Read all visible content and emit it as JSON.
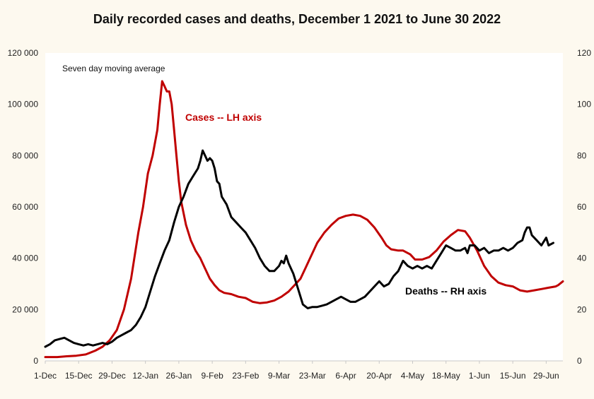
{
  "chart_data": {
    "type": "line",
    "title": "Daily recorded cases and deaths,  December 1 2021 to June 30 2022",
    "x_labels": [
      "1-Dec",
      "15-Dec",
      "29-Dec",
      "12-Jan",
      "26-Jan",
      "9-Feb",
      "23-Feb",
      "9-Mar",
      "23-Mar",
      "6-Apr",
      "20-Apr",
      "4-May",
      "18-May",
      "1-Jun",
      "15-Jun",
      "29-Jun"
    ],
    "left_axis": {
      "ylim": [
        0,
        120000
      ],
      "ticks": [
        "0",
        "20 000",
        "40 000",
        "60 000",
        "80 000",
        "100 000",
        "120 000"
      ]
    },
    "right_axis": {
      "ylim": [
        0,
        120
      ],
      "ticks": [
        "0",
        "20",
        "40",
        "60",
        "80",
        "100",
        "120"
      ]
    },
    "grid": false,
    "annotations": {
      "note": "Seven day moving average",
      "cases_label": "Cases -- LH axis",
      "deaths_label": "Deaths -- RH axis"
    },
    "series": [
      {
        "name": "Cases -- LH axis",
        "axis": "left",
        "color": "#c00000",
        "points": [
          [
            0,
            1500
          ],
          [
            5,
            1500
          ],
          [
            9,
            1800
          ],
          [
            13,
            2000
          ],
          [
            17,
            2500
          ],
          [
            21,
            4000
          ],
          [
            24,
            5500
          ],
          [
            27,
            8000
          ],
          [
            30,
            12000
          ],
          [
            33,
            20000
          ],
          [
            36,
            32000
          ],
          [
            39,
            50000
          ],
          [
            41,
            60000
          ],
          [
            43,
            73000
          ],
          [
            45,
            80000
          ],
          [
            47,
            90000
          ],
          [
            48,
            100000
          ],
          [
            49,
            109000
          ],
          [
            50,
            107000
          ],
          [
            51,
            105000
          ],
          [
            52,
            105000
          ],
          [
            53,
            100000
          ],
          [
            54,
            90000
          ],
          [
            55,
            80000
          ],
          [
            56,
            70000
          ],
          [
            57,
            62000
          ],
          [
            59,
            53000
          ],
          [
            61,
            47000
          ],
          [
            63,
            43000
          ],
          [
            65,
            40000
          ],
          [
            67,
            36000
          ],
          [
            69,
            32000
          ],
          [
            71,
            29500
          ],
          [
            73,
            27500
          ],
          [
            75,
            26500
          ],
          [
            78,
            26000
          ],
          [
            81,
            25000
          ],
          [
            84,
            24500
          ],
          [
            87,
            23000
          ],
          [
            90,
            22500
          ],
          [
            93,
            22800
          ],
          [
            96,
            23500
          ],
          [
            99,
            25000
          ],
          [
            102,
            27000
          ],
          [
            105,
            30000
          ],
          [
            107,
            32000
          ],
          [
            109,
            36000
          ],
          [
            111,
            40000
          ],
          [
            114,
            46000
          ],
          [
            117,
            50000
          ],
          [
            120,
            53000
          ],
          [
            123,
            55500
          ],
          [
            126,
            56500
          ],
          [
            129,
            57000
          ],
          [
            132,
            56500
          ],
          [
            135,
            55000
          ],
          [
            138,
            52000
          ],
          [
            141,
            48000
          ],
          [
            143,
            45000
          ],
          [
            145,
            43500
          ],
          [
            148,
            43000
          ],
          [
            150,
            43000
          ],
          [
            153,
            41500
          ],
          [
            155,
            39500
          ],
          [
            158,
            39500
          ],
          [
            161,
            40500
          ],
          [
            164,
            43000
          ],
          [
            167,
            46500
          ],
          [
            170,
            49000
          ],
          [
            173,
            51000
          ],
          [
            176,
            50500
          ],
          [
            178,
            48000
          ],
          [
            181,
            43000
          ],
          [
            184,
            37000
          ],
          [
            187,
            33000
          ],
          [
            190,
            30500
          ],
          [
            193,
            29500
          ],
          [
            196,
            29000
          ],
          [
            199,
            27500
          ],
          [
            202,
            27000
          ],
          [
            205,
            27500
          ],
          [
            208,
            28000
          ],
          [
            211,
            28500
          ],
          [
            214,
            29000
          ],
          [
            215,
            29500
          ],
          [
            217,
            31000
          ]
        ]
      },
      {
        "name": "Deaths -- RH axis",
        "axis": "right",
        "color": "#000000",
        "points": [
          [
            0,
            5.5
          ],
          [
            2,
            6.5
          ],
          [
            4,
            8
          ],
          [
            6,
            8.5
          ],
          [
            8,
            9
          ],
          [
            10,
            8
          ],
          [
            12,
            7
          ],
          [
            14,
            6.5
          ],
          [
            16,
            6
          ],
          [
            18,
            6.5
          ],
          [
            20,
            6
          ],
          [
            22,
            6.5
          ],
          [
            24,
            7
          ],
          [
            26,
            6.5
          ],
          [
            28,
            7.5
          ],
          [
            30,
            9
          ],
          [
            32,
            10
          ],
          [
            34,
            11
          ],
          [
            36,
            12
          ],
          [
            38,
            14
          ],
          [
            40,
            17
          ],
          [
            42,
            21
          ],
          [
            44,
            27
          ],
          [
            46,
            33
          ],
          [
            48,
            38
          ],
          [
            50,
            43
          ],
          [
            52,
            47
          ],
          [
            54,
            54
          ],
          [
            56,
            60
          ],
          [
            58,
            64
          ],
          [
            60,
            69
          ],
          [
            62,
            72
          ],
          [
            64,
            75
          ],
          [
            65,
            78
          ],
          [
            66,
            82
          ],
          [
            67,
            80
          ],
          [
            68,
            78
          ],
          [
            69,
            79
          ],
          [
            70,
            78
          ],
          [
            71,
            75
          ],
          [
            72,
            70
          ],
          [
            73,
            69
          ],
          [
            74,
            64
          ],
          [
            76,
            61
          ],
          [
            78,
            56
          ],
          [
            80,
            54
          ],
          [
            82,
            52
          ],
          [
            84,
            50
          ],
          [
            86,
            47
          ],
          [
            88,
            44
          ],
          [
            90,
            40
          ],
          [
            92,
            37
          ],
          [
            94,
            35
          ],
          [
            96,
            35
          ],
          [
            98,
            37
          ],
          [
            99,
            39
          ],
          [
            100,
            38
          ],
          [
            101,
            41
          ],
          [
            102,
            38
          ],
          [
            104,
            34
          ],
          [
            106,
            28
          ],
          [
            108,
            22
          ],
          [
            110,
            20.5
          ],
          [
            112,
            21
          ],
          [
            114,
            21
          ],
          [
            116,
            21.5
          ],
          [
            118,
            22
          ],
          [
            120,
            23
          ],
          [
            122,
            24
          ],
          [
            124,
            25
          ],
          [
            126,
            24
          ],
          [
            128,
            23
          ],
          [
            130,
            23
          ],
          [
            132,
            24
          ],
          [
            134,
            25
          ],
          [
            136,
            27
          ],
          [
            138,
            29
          ],
          [
            140,
            31
          ],
          [
            142,
            29
          ],
          [
            144,
            30
          ],
          [
            146,
            33
          ],
          [
            148,
            35
          ],
          [
            150,
            39
          ],
          [
            152,
            37
          ],
          [
            154,
            36
          ],
          [
            156,
            37
          ],
          [
            158,
            36
          ],
          [
            160,
            37
          ],
          [
            162,
            36
          ],
          [
            164,
            39
          ],
          [
            166,
            42
          ],
          [
            168,
            45
          ],
          [
            170,
            44
          ],
          [
            172,
            43
          ],
          [
            174,
            43
          ],
          [
            176,
            44
          ],
          [
            177,
            42
          ],
          [
            178,
            45
          ],
          [
            180,
            45
          ],
          [
            182,
            43
          ],
          [
            184,
            44
          ],
          [
            186,
            42
          ],
          [
            188,
            43
          ],
          [
            190,
            43
          ],
          [
            192,
            44
          ],
          [
            194,
            43
          ],
          [
            196,
            44
          ],
          [
            198,
            46
          ],
          [
            200,
            47
          ],
          [
            201,
            50
          ],
          [
            202,
            52
          ],
          [
            203,
            52
          ],
          [
            204,
            49
          ],
          [
            206,
            47
          ],
          [
            208,
            45
          ],
          [
            210,
            48
          ],
          [
            211,
            45
          ],
          [
            213,
            46
          ]
        ]
      }
    ]
  }
}
